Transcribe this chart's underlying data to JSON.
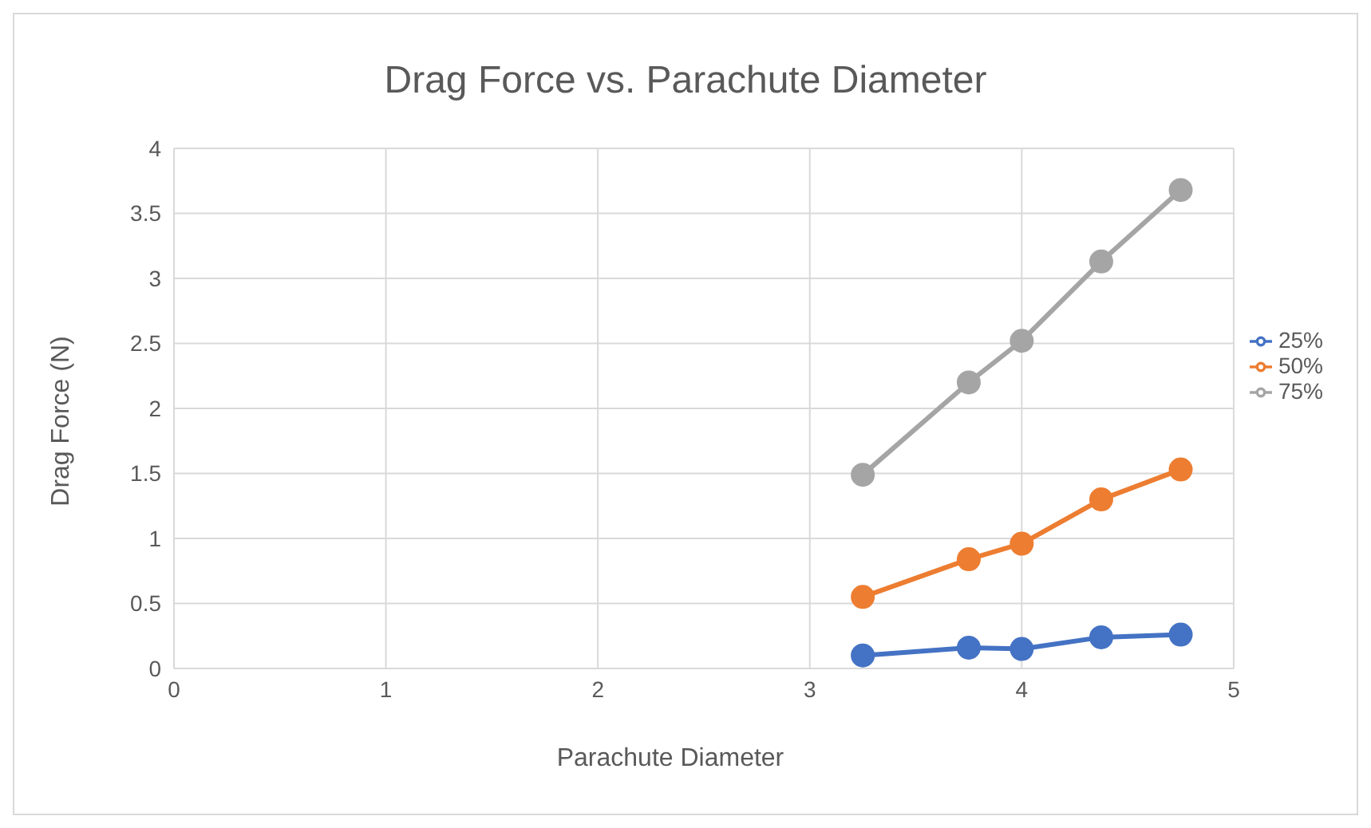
{
  "chart_data": {
    "type": "line",
    "title": "Drag Force vs. Parachute Diameter",
    "xlabel": "Parachute Diameter",
    "ylabel": "Drag Force (N)",
    "x": [
      3.25,
      3.75,
      4,
      4.375,
      4.75
    ],
    "series": [
      {
        "name": "25%",
        "color": "#4472c4",
        "values": [
          0.1,
          0.16,
          0.15,
          0.24,
          0.26
        ]
      },
      {
        "name": "50%",
        "color": "#ed7d31",
        "values": [
          0.55,
          0.84,
          0.96,
          1.3,
          1.53
        ]
      },
      {
        "name": "75%",
        "color": "#a5a5a5",
        "values": [
          1.49,
          2.2,
          2.52,
          3.13,
          3.68
        ]
      }
    ],
    "xlim": [
      0,
      5
    ],
    "xticks": [
      0,
      1,
      2,
      3,
      4,
      5
    ],
    "ylim": [
      0,
      4
    ],
    "yticks": [
      0,
      0.5,
      1,
      1.5,
      2,
      2.5,
      3,
      3.5,
      4
    ],
    "grid": true,
    "legend": "right",
    "marker": "circle",
    "line_style": "solid"
  }
}
